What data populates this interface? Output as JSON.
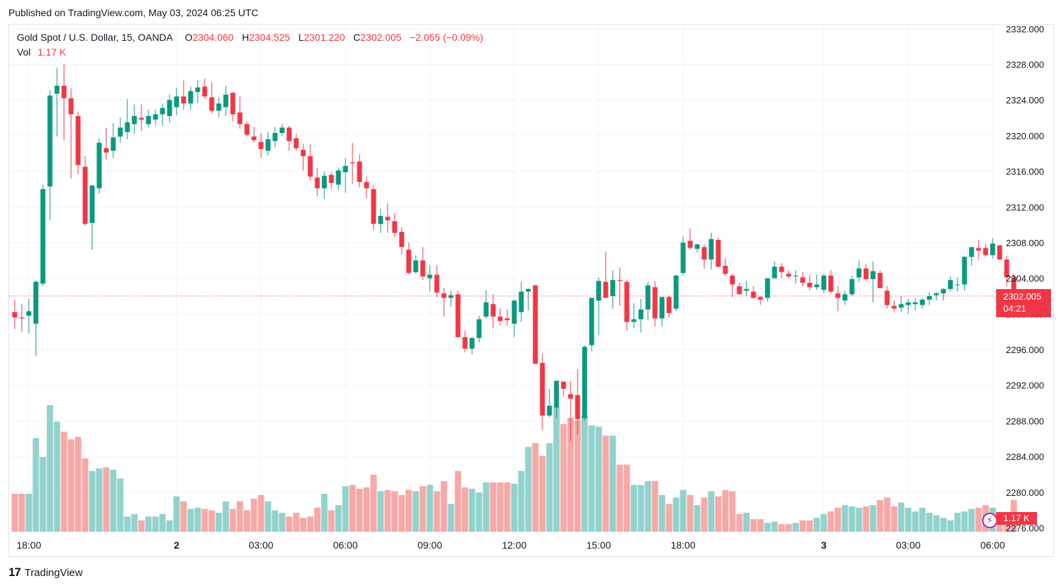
{
  "header": {
    "published": "Published on TradingView.com, May 03, 2024 06:25 UTC"
  },
  "legend": {
    "symbol": "Gold Spot / U.S. Dollar, 15, OANDA",
    "o_label": "O",
    "o_value": "2304.060",
    "h_label": "H",
    "h_value": "2304.525",
    "l_label": "L",
    "l_value": "2301.220",
    "c_label": "C",
    "c_value": "2302.005",
    "change": "−2.055 (−0.09%)",
    "vol_label": "Vol",
    "vol_value": "1.17 K"
  },
  "price_tag": {
    "price": "2302.005",
    "countdown": "04:21"
  },
  "volume_tag": "1.17 K",
  "footer": {
    "brand": "TradingView",
    "logo_text": "17"
  },
  "colors": {
    "up": "#089981",
    "down": "#f23645",
    "up_vol": "#92d2cc",
    "down_vol": "#f7a9a7",
    "grid": "#f0f3fa",
    "axis_text": "#131722"
  },
  "chart_data": {
    "type": "candlestick",
    "title": "Gold Spot / U.S. Dollar, 15, OANDA",
    "y_ticks": [
      "2276.000",
      "2280.000",
      "2284.000",
      "2288.000",
      "2292.000",
      "2296.000",
      "2300.000",
      "2304.000",
      "2308.000",
      "2312.000",
      "2316.000",
      "2320.000",
      "2324.000",
      "2328.000",
      "2332.000"
    ],
    "y_tick_values": [
      2276,
      2280,
      2284,
      2288,
      2292,
      2296,
      2300,
      2304,
      2308,
      2312,
      2316,
      2320,
      2324,
      2328,
      2332
    ],
    "ylim": [
      2275.8,
      2332.3
    ],
    "x_ticks": [
      {
        "label": "18:00",
        "bar": 2
      },
      {
        "label": "2",
        "bar": 23
      },
      {
        "label": "03:00",
        "bar": 35
      },
      {
        "label": "06:00",
        "bar": 47
      },
      {
        "label": "09:00",
        "bar": 59
      },
      {
        "label": "12:00",
        "bar": 71
      },
      {
        "label": "15:00",
        "bar": 83
      },
      {
        "label": "18:00",
        "bar": 95
      },
      {
        "label": "3",
        "bar": 115
      },
      {
        "label": "03:00",
        "bar": 127
      },
      {
        "label": "06:00",
        "bar": 139
      }
    ],
    "last_price": 2302.005,
    "ohlcv": [
      [
        2300.2,
        2301.6,
        2298.3,
        2299.6,
        0.3
      ],
      [
        2299.6,
        2301.1,
        2298.0,
        2299.5,
        0.3
      ],
      [
        2299.8,
        2301.7,
        2297.8,
        2300.3,
        0.3
      ],
      [
        2298.9,
        2303.8,
        2295.3,
        2303.6,
        0.74
      ],
      [
        2303.4,
        2314.5,
        2303.1,
        2314.0,
        0.59
      ],
      [
        2314.3,
        2325.1,
        2310.5,
        2324.5,
        1.0
      ],
      [
        2324.7,
        2327.6,
        2319.9,
        2325.6,
        0.87
      ],
      [
        2325.6,
        2328.0,
        2319.5,
        2324.2,
        0.79
      ],
      [
        2324.2,
        2325.3,
        2315.2,
        2322.4,
        0.73
      ],
      [
        2322.2,
        2322.7,
        2315.7,
        2316.7,
        0.75
      ],
      [
        2316.5,
        2317.7,
        2309.9,
        2310.1,
        0.58
      ],
      [
        2310.2,
        2314.5,
        2307.2,
        2314.4,
        0.48
      ],
      [
        2314.1,
        2319.7,
        2313.5,
        2319.2,
        0.5
      ],
      [
        2318.6,
        2320.9,
        2317.3,
        2318.1,
        0.51
      ],
      [
        2318.3,
        2321.4,
        2317.5,
        2319.8,
        0.49
      ],
      [
        2319.9,
        2322.0,
        2319.2,
        2320.9,
        0.42
      ],
      [
        2320.4,
        2324.1,
        2319.6,
        2321.5,
        0.12
      ],
      [
        2321.3,
        2323.5,
        2320.2,
        2322.2,
        0.14
      ],
      [
        2322.0,
        2323.5,
        2320.5,
        2321.8,
        0.09
      ],
      [
        2321.3,
        2322.9,
        2320.9,
        2322.2,
        0.12
      ],
      [
        2321.8,
        2322.9,
        2321.2,
        2322.4,
        0.12
      ],
      [
        2322.4,
        2323.6,
        2321.1,
        2323.1,
        0.14
      ],
      [
        2322.2,
        2324.6,
        2321.5,
        2324.0,
        0.09
      ],
      [
        2323.2,
        2325.4,
        2322.3,
        2324.4,
        0.28
      ],
      [
        2324.4,
        2326.2,
        2322.9,
        2323.6,
        0.24
      ],
      [
        2323.6,
        2325.5,
        2322.9,
        2325.0,
        0.18
      ],
      [
        2324.9,
        2326.2,
        2323.7,
        2325.4,
        0.19
      ],
      [
        2325.5,
        2326.4,
        2324.1,
        2324.4,
        0.18
      ],
      [
        2324.3,
        2326.0,
        2322.5,
        2322.8,
        0.17
      ],
      [
        2322.8,
        2324.3,
        2322.1,
        2323.6,
        0.15
      ],
      [
        2323.2,
        2325.6,
        2322.2,
        2324.6,
        0.24
      ],
      [
        2324.8,
        2324.9,
        2321.6,
        2322.4,
        0.18
      ],
      [
        2322.6,
        2324.4,
        2320.8,
        2321.3,
        0.24
      ],
      [
        2321.3,
        2321.6,
        2319.9,
        2320.1,
        0.17
      ],
      [
        2319.9,
        2321.0,
        2319.2,
        2319.5,
        0.26
      ],
      [
        2319.3,
        2320.3,
        2317.5,
        2318.5,
        0.29
      ],
      [
        2318.3,
        2320.4,
        2317.8,
        2319.6,
        0.24
      ],
      [
        2319.4,
        2321.0,
        2318.7,
        2320.3,
        0.17
      ],
      [
        2320.3,
        2321.3,
        2320.0,
        2320.9,
        0.15
      ],
      [
        2320.9,
        2321.1,
        2318.3,
        2319.4,
        0.12
      ],
      [
        2319.7,
        2320.2,
        2318.3,
        2318.6,
        0.15
      ],
      [
        2318.4,
        2319.1,
        2316.1,
        2317.7,
        0.11
      ],
      [
        2317.7,
        2319.0,
        2315.0,
        2315.4,
        0.12
      ],
      [
        2315.3,
        2316.4,
        2313.2,
        2314.1,
        0.19
      ],
      [
        2314.1,
        2316.0,
        2312.9,
        2315.5,
        0.3
      ],
      [
        2315.6,
        2315.9,
        2314.0,
        2314.7,
        0.17
      ],
      [
        2314.5,
        2316.4,
        2313.9,
        2316.1,
        0.21
      ],
      [
        2315.9,
        2317.5,
        2313.6,
        2316.6,
        0.36
      ],
      [
        2317.0,
        2319.2,
        2314.6,
        2316.9,
        0.37
      ],
      [
        2317.1,
        2317.9,
        2314.2,
        2314.8,
        0.34
      ],
      [
        2314.8,
        2315.4,
        2313.0,
        2314.1,
        0.35
      ],
      [
        2314.0,
        2314.4,
        2309.4,
        2310.1,
        0.45
      ],
      [
        2310.1,
        2311.8,
        2309.1,
        2311.0,
        0.32
      ],
      [
        2310.9,
        2312.4,
        2309.1,
        2310.5,
        0.33
      ],
      [
        2310.4,
        2311.3,
        2308.6,
        2309.1,
        0.32
      ],
      [
        2309.2,
        2309.7,
        2306.7,
        2307.5,
        0.29
      ],
      [
        2307.2,
        2308.0,
        2304.4,
        2304.6,
        0.33
      ],
      [
        2304.7,
        2306.6,
        2304.5,
        2306.0,
        0.32
      ],
      [
        2306.0,
        2307.5,
        2303.8,
        2304.2,
        0.36
      ],
      [
        2304.0,
        2305.5,
        2302.5,
        2304.4,
        0.37
      ],
      [
        2304.4,
        2305.5,
        2301.9,
        2302.4,
        0.32
      ],
      [
        2302.3,
        2302.9,
        2299.7,
        2301.8,
        0.4
      ],
      [
        2301.8,
        2302.6,
        2300.8,
        2302.1,
        0.22
      ],
      [
        2302.2,
        2302.6,
        2297.3,
        2297.4,
        0.48
      ],
      [
        2297.4,
        2298.1,
        2295.7,
        2296.1,
        0.35
      ],
      [
        2296.1,
        2297.4,
        2295.5,
        2297.3,
        0.34
      ],
      [
        2297.3,
        2299.8,
        2296.8,
        2299.4,
        0.31
      ],
      [
        2299.7,
        2302.7,
        2299.5,
        2301.3,
        0.39
      ],
      [
        2301.1,
        2302.2,
        2298.4,
        2299.7,
        0.39
      ],
      [
        2299.7,
        2300.6,
        2298.7,
        2299.2,
        0.39
      ],
      [
        2299.5,
        2300.5,
        2298.7,
        2299.3,
        0.39
      ],
      [
        2298.9,
        2301.6,
        2297.4,
        2301.5,
        0.38
      ],
      [
        2300.2,
        2303.6,
        2299.1,
        2302.5,
        0.48
      ],
      [
        2302.5,
        2302.9,
        2300.4,
        2302.8,
        0.67
      ],
      [
        2303.2,
        2303.3,
        2294.4,
        2294.4,
        0.7
      ],
      [
        2294.5,
        2295.5,
        2287.0,
        2288.6,
        0.6
      ],
      [
        2288.6,
        2291.6,
        2288.4,
        2289.7,
        0.7
      ],
      [
        2289.5,
        2292.3,
        2288.3,
        2292.5,
        0.99
      ],
      [
        2292.4,
        2292.4,
        2290.7,
        2291.6,
        0.85
      ],
      [
        2291.0,
        2292.5,
        2285.7,
        2290.5,
        0.9
      ],
      [
        2290.9,
        2293.8,
        2286.4,
        2288.2,
        0.88
      ],
      [
        2288.3,
        2296.5,
        2288.0,
        2296.3,
        0.92
      ],
      [
        2296.5,
        2301.8,
        2295.8,
        2301.8,
        0.84
      ],
      [
        2301.5,
        2304.1,
        2297.6,
        2303.7,
        0.83
      ],
      [
        2303.6,
        2307.0,
        2302.1,
        2301.8,
        0.76
      ],
      [
        2302.0,
        2304.9,
        2300.6,
        2303.8,
        0.76
      ],
      [
        2303.8,
        2305.2,
        2300.9,
        2303.7,
        0.53
      ],
      [
        2303.6,
        2303.8,
        2298.1,
        2299.1,
        0.53
      ],
      [
        2299.1,
        2301.2,
        2298.4,
        2299.4,
        0.37
      ],
      [
        2299.4,
        2301.7,
        2297.9,
        2300.5,
        0.37
      ],
      [
        2300.5,
        2303.6,
        2299.3,
        2303.2,
        0.4
      ],
      [
        2303.0,
        2303.7,
        2298.6,
        2299.5,
        0.4
      ],
      [
        2299.5,
        2301.9,
        2298.6,
        2301.9,
        0.29
      ],
      [
        2301.9,
        2302.0,
        2299.6,
        2300.1,
        0.22
      ],
      [
        2300.6,
        2304.4,
        2300.3,
        2304.3,
        0.27
      ],
      [
        2304.6,
        2308.7,
        2304.3,
        2308.0,
        0.33
      ],
      [
        2308.2,
        2309.6,
        2307.2,
        2307.4,
        0.29
      ],
      [
        2307.3,
        2307.9,
        2306.9,
        2307.8,
        0.21
      ],
      [
        2307.5,
        2307.8,
        2305.1,
        2306.1,
        0.27
      ],
      [
        2306.1,
        2309.1,
        2305.0,
        2308.4,
        0.32
      ],
      [
        2308.3,
        2308.6,
        2305.2,
        2305.3,
        0.28
      ],
      [
        2305.4,
        2306.2,
        2304.3,
        2304.5,
        0.33
      ],
      [
        2304.3,
        2304.5,
        2301.9,
        2303.3,
        0.32
      ],
      [
        2303.1,
        2303.5,
        2302.2,
        2302.2,
        0.14
      ],
      [
        2302.6,
        2303.7,
        2302.0,
        2302.8,
        0.15
      ],
      [
        2302.5,
        2303.1,
        2301.7,
        2301.8,
        0.1
      ],
      [
        2301.9,
        2302.0,
        2301.0,
        2301.6,
        0.1
      ],
      [
        2301.8,
        2304.0,
        2301.4,
        2304.0,
        0.07
      ],
      [
        2304.0,
        2305.9,
        2304.0,
        2305.3,
        0.08
      ],
      [
        2305.3,
        2305.7,
        2304.0,
        2304.7,
        0.06
      ],
      [
        2304.5,
        2304.9,
        2304.0,
        2304.2,
        0.06
      ],
      [
        2304.3,
        2304.9,
        2303.4,
        2304.3,
        0.07
      ],
      [
        2304.1,
        2304.7,
        2303.1,
        2303.5,
        0.09
      ],
      [
        2303.5,
        2304.4,
        2302.6,
        2303.0,
        0.09
      ],
      [
        2303.0,
        2304.4,
        2302.7,
        2303.3,
        0.11
      ],
      [
        2302.7,
        2304.5,
        2302.3,
        2304.3,
        0.14
      ],
      [
        2304.3,
        2304.9,
        2302.3,
        2302.5,
        0.16
      ],
      [
        2302.3,
        2303.1,
        2300.3,
        2301.8,
        0.19
      ],
      [
        2301.5,
        2302.6,
        2301.0,
        2302.2,
        0.21
      ],
      [
        2302.2,
        2304.3,
        2302.0,
        2303.9,
        0.2
      ],
      [
        2304.1,
        2306.0,
        2303.6,
        2305.1,
        0.19
      ],
      [
        2305.1,
        2305.6,
        2303.7,
        2303.9,
        0.2
      ],
      [
        2303.9,
        2305.9,
        2301.3,
        2304.8,
        0.21
      ],
      [
        2304.6,
        2304.9,
        2302.9,
        2302.9,
        0.25
      ],
      [
        2302.6,
        2303.1,
        2300.6,
        2301.0,
        0.27
      ],
      [
        2300.9,
        2301.5,
        2300.3,
        2300.6,
        0.2
      ],
      [
        2300.7,
        2302.0,
        2300.2,
        2301.1,
        0.23
      ],
      [
        2301.0,
        2301.7,
        2300.0,
        2301.3,
        0.19
      ],
      [
        2301.1,
        2301.7,
        2300.4,
        2301.3,
        0.16
      ],
      [
        2301.0,
        2301.8,
        2300.6,
        2301.6,
        0.19
      ],
      [
        2301.6,
        2302.4,
        2301.0,
        2302.0,
        0.15
      ],
      [
        2302.1,
        2302.5,
        2301.5,
        2302.3,
        0.13
      ],
      [
        2302.3,
        2302.9,
        2301.5,
        2302.8,
        0.11
      ],
      [
        2302.8,
        2304.2,
        2302.5,
        2303.8,
        0.09
      ],
      [
        2303.3,
        2304.1,
        2302.5,
        2303.3,
        0.15
      ],
      [
        2303.3,
        2306.5,
        2302.6,
        2306.4,
        0.16
      ],
      [
        2306.4,
        2307.5,
        2305.4,
        2307.5,
        0.18
      ],
      [
        2307.4,
        2308.3,
        2306.1,
        2307.1,
        0.19
      ],
      [
        2307.4,
        2307.9,
        2306.4,
        2306.6,
        0.21
      ],
      [
        2306.6,
        2308.5,
        2306.2,
        2307.9,
        0.19
      ],
      [
        2307.7,
        2307.7,
        2306.1,
        2306.1,
        0.15
      ],
      [
        2306.1,
        2306.5,
        2303.1,
        2304.1,
        0.14
      ],
      [
        2304.1,
        2304.5,
        2301.2,
        2302.0,
        0.25
      ]
    ]
  }
}
